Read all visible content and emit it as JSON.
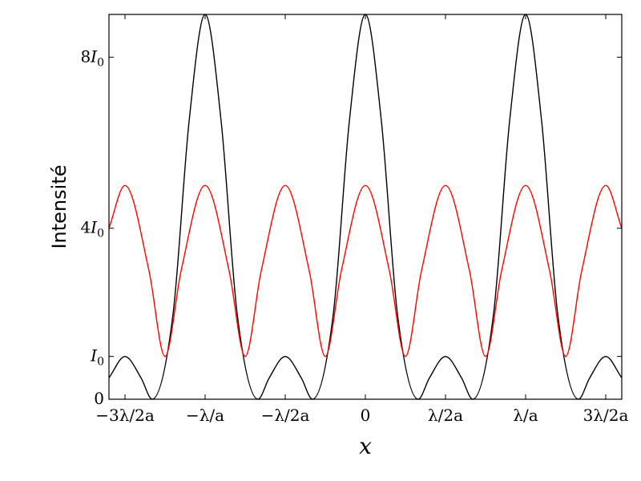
{
  "chart_data": {
    "type": "line",
    "title": "",
    "xlabel": "x",
    "ylabel": "Intensité",
    "x_unit": "λ/a",
    "y_unit": "I0",
    "xlim": [
      -1.6,
      1.6
    ],
    "ylim": [
      0,
      9
    ],
    "grid": false,
    "x_ticks": [
      {
        "value": -1.5,
        "label": "−3λ/2a"
      },
      {
        "value": -1.0,
        "label": "−λ/a"
      },
      {
        "value": -0.5,
        "label": "−λ/2a"
      },
      {
        "value": 0.0,
        "label": "0"
      },
      {
        "value": 0.5,
        "label": "λ/2a"
      },
      {
        "value": 1.0,
        "label": "λ/a"
      },
      {
        "value": 1.5,
        "label": "3λ/2a"
      }
    ],
    "y_ticks": [
      {
        "value": 0,
        "label": "0"
      },
      {
        "value": 1,
        "label": "I0"
      },
      {
        "value": 4,
        "label": "4I0"
      },
      {
        "value": 8,
        "label": "8I0"
      }
    ],
    "series": [
      {
        "color": "#000000",
        "x": [
          -1.6,
          -1.5,
          -1.4,
          -1.33,
          -1.2,
          -1.1,
          -1.0,
          -0.9,
          -0.8,
          -0.67,
          -0.6,
          -0.5,
          -0.4,
          -0.33,
          -0.2,
          -0.1,
          0.0,
          0.1,
          0.2,
          0.33,
          0.4,
          0.5,
          0.6,
          0.67,
          0.8,
          0.9,
          1.0,
          1.1,
          1.2,
          1.33,
          1.4,
          1.5,
          1.6
        ],
        "y": [
          0.5,
          1.0,
          0.5,
          0.0,
          2.0,
          6.5,
          9.0,
          6.5,
          2.0,
          0.0,
          0.5,
          1.0,
          0.5,
          0.0,
          2.0,
          6.5,
          9.0,
          6.5,
          2.0,
          0.0,
          0.5,
          1.0,
          0.5,
          0.0,
          2.0,
          6.5,
          9.0,
          6.5,
          2.0,
          0.0,
          0.5,
          1.0,
          0.5
        ]
      },
      {
        "color": "#ff0000",
        "x": [
          -1.6,
          -1.5,
          -1.35,
          -1.25,
          -1.15,
          -1.0,
          -0.85,
          -0.75,
          -0.65,
          -0.5,
          -0.35,
          -0.25,
          -0.15,
          0.0,
          0.15,
          0.25,
          0.35,
          0.5,
          0.65,
          0.75,
          0.85,
          1.0,
          1.15,
          1.25,
          1.35,
          1.5,
          1.6
        ],
        "y": [
          4.0,
          5.0,
          3.0,
          1.0,
          3.0,
          5.0,
          3.0,
          1.0,
          3.0,
          5.0,
          3.0,
          1.0,
          3.0,
          5.0,
          3.0,
          1.0,
          3.0,
          5.0,
          3.0,
          1.0,
          3.0,
          5.0,
          3.0,
          1.0,
          3.0,
          5.0,
          4.0
        ]
      }
    ]
  }
}
